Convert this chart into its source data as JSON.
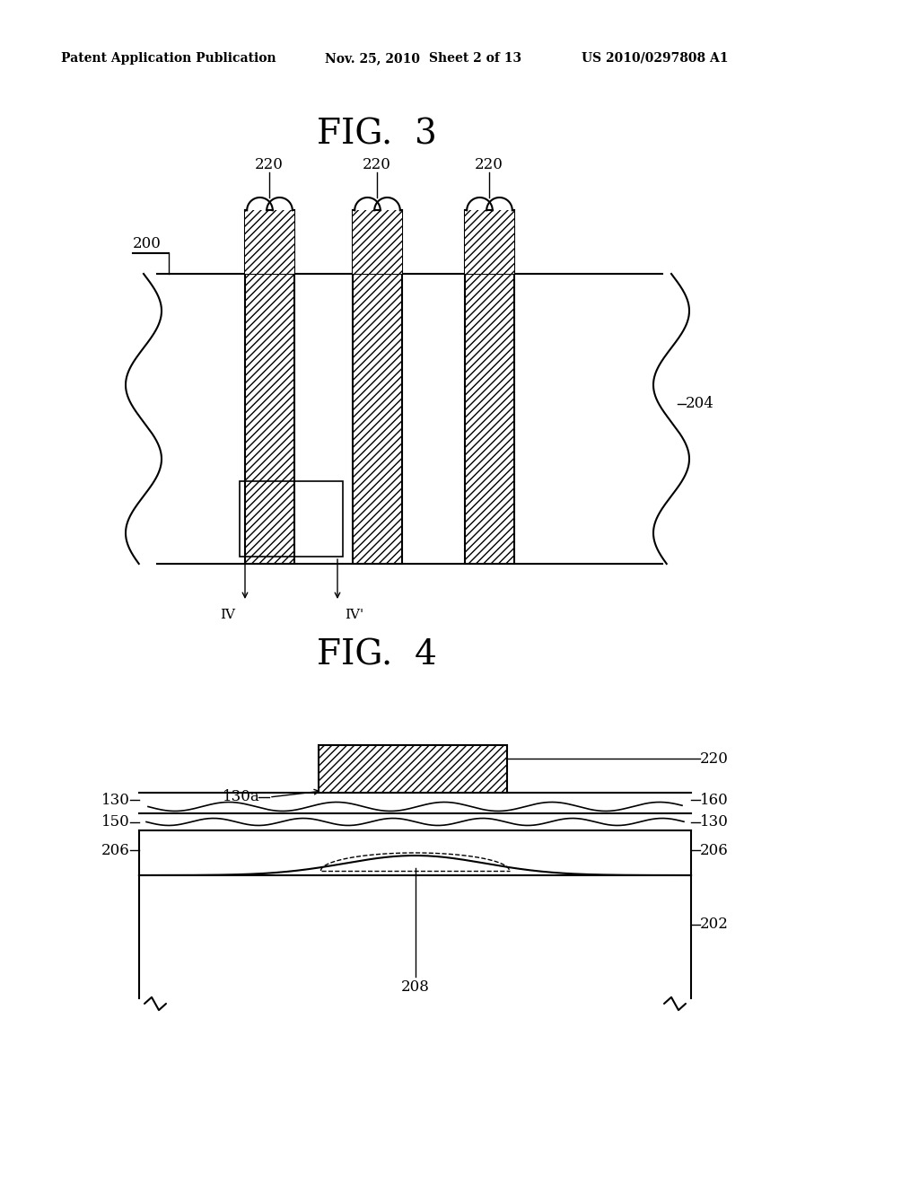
{
  "bg_color": "#ffffff",
  "header_left": "Patent Application Publication",
  "header_mid1": "Nov. 25, 2010",
  "header_mid2": "Sheet 2 of 13",
  "header_right": "US 2010/0297808 A1",
  "fig3_title": "FIG.  3",
  "fig4_title": "FIG.  4",
  "lbl_200": "200",
  "lbl_204": "204",
  "lbl_220": "220",
  "lbl_202": "202",
  "lbl_206": "206",
  "lbl_208": "208",
  "lbl_130": "130",
  "lbl_130a": "130a",
  "lbl_150": "150",
  "lbl_160": "160",
  "lbl_IV": "IV",
  "lbl_IVp": "IV'"
}
